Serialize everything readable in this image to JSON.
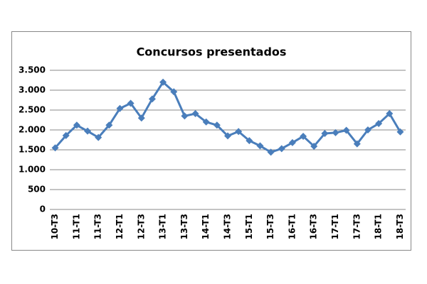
{
  "chart_data": {
    "type": "line",
    "title": "Concursos presentados",
    "categories": [
      "10-T3",
      null,
      "11-T1",
      null,
      "11-T3",
      null,
      "12-T1",
      null,
      "12-T3",
      null,
      "13-T1",
      null,
      "13-T3",
      null,
      "14-T1",
      null,
      "14-T3",
      null,
      "15-T1",
      null,
      "15-T3",
      null,
      "16-T1",
      null,
      "16-T3",
      null,
      "17-T1",
      null,
      "17-T3",
      null,
      "18-T1",
      null,
      "18-T3"
    ],
    "series": [
      {
        "name": "Concursos presentados",
        "color": "#4a7ebb",
        "values": [
          1550,
          1860,
          2120,
          1970,
          1810,
          2120,
          2540,
          2670,
          2300,
          2780,
          3200,
          2960,
          2350,
          2410,
          2200,
          2120,
          1850,
          1960,
          1730,
          1600,
          1440,
          1530,
          1680,
          1840,
          1590,
          1910,
          1930,
          1990,
          1650,
          2000,
          2160,
          2410,
          1950
        ]
      }
    ],
    "ylim": [
      0,
      3500
    ],
    "yticks": [
      0,
      500,
      {
        "value": 1000,
        "label": "1.000"
      },
      {
        "value": 1500,
        "label": "1.500"
      },
      {
        "value": 2000,
        "label": "2.000"
      },
      {
        "value": 2500,
        "label": "2.500"
      },
      {
        "value": 3000,
        "label": "3.000"
      },
      {
        "value": 3500,
        "label": "3.500"
      }
    ],
    "grid": true
  }
}
